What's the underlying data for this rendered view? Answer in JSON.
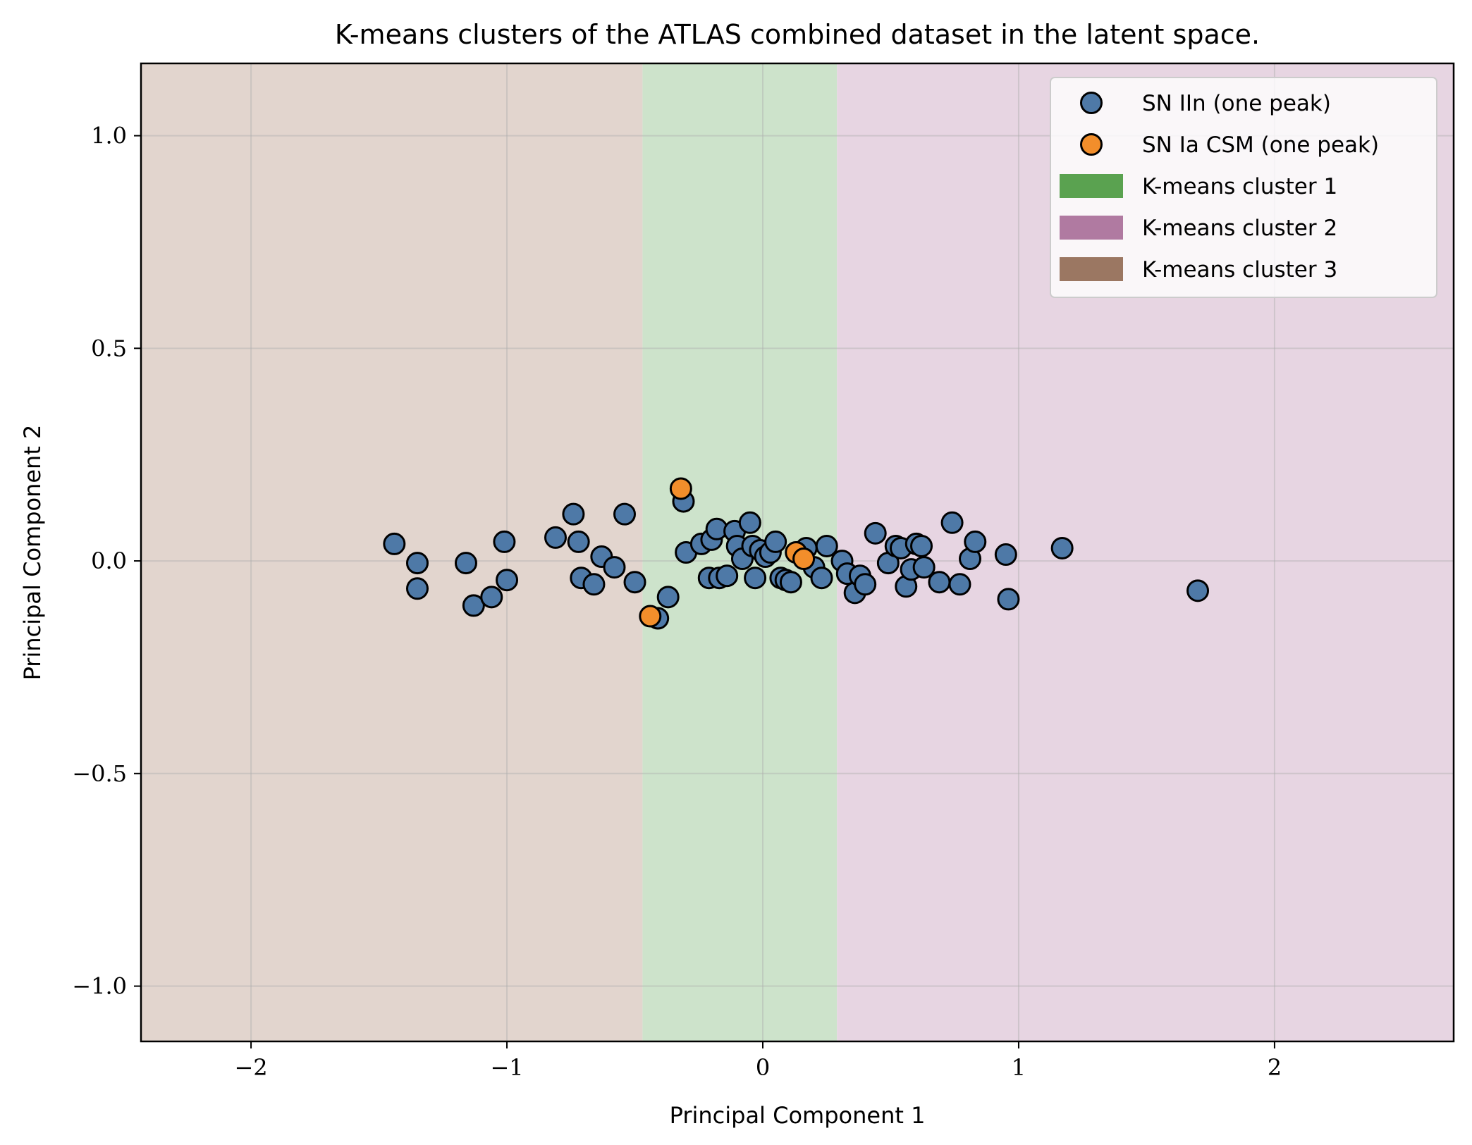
{
  "chart_data": {
    "type": "scatter",
    "title": "K-means clusters of the ATLAS combined dataset in the latent space.",
    "xlabel": "Principal Component 1",
    "ylabel": "Principal Component 2",
    "xlim": [
      -2.43,
      2.7
    ],
    "ylim": [
      -1.13,
      1.17
    ],
    "x_ticks": [
      -2,
      -1,
      0,
      1,
      2
    ],
    "x_tick_labels": [
      "−2",
      "−1",
      "0",
      "1",
      "2"
    ],
    "y_ticks": [
      -1.0,
      -0.5,
      0.0,
      0.5,
      1.0
    ],
    "y_tick_labels": [
      "−1.0",
      "−0.5",
      "0.0",
      "0.5",
      "1.0"
    ],
    "grid": true,
    "legend_position": "top-right",
    "regions": [
      {
        "name": "K-means cluster 3",
        "color": "#9b7762",
        "fill": "#e2d5ce",
        "x_from": -2.43,
        "x_to": -0.47
      },
      {
        "name": "K-means cluster 1",
        "color": "#5aa250",
        "fill": "#cde3cb",
        "x_from": -0.47,
        "x_to": 0.29
      },
      {
        "name": "K-means cluster 2",
        "color": "#b07aa1",
        "fill": "#e7d5e2",
        "x_from": 0.29,
        "x_to": 2.7
      }
    ],
    "series": [
      {
        "name": "SN IIn (one peak)",
        "color": "#4e79a7",
        "points": [
          [
            -1.44,
            0.04
          ],
          [
            -1.35,
            -0.005
          ],
          [
            -1.35,
            -0.065
          ],
          [
            -1.16,
            -0.005
          ],
          [
            -1.13,
            -0.105
          ],
          [
            -1.06,
            -0.085
          ],
          [
            -1.01,
            0.045
          ],
          [
            -1.0,
            -0.045
          ],
          [
            -0.81,
            0.055
          ],
          [
            -0.74,
            0.11
          ],
          [
            -0.72,
            0.045
          ],
          [
            -0.71,
            -0.04
          ],
          [
            -0.66,
            -0.055
          ],
          [
            -0.63,
            0.01
          ],
          [
            -0.58,
            -0.015
          ],
          [
            -0.54,
            0.11
          ],
          [
            -0.5,
            -0.05
          ],
          [
            -0.41,
            -0.135
          ],
          [
            -0.37,
            -0.085
          ],
          [
            -0.31,
            0.14
          ],
          [
            -0.3,
            0.02
          ],
          [
            -0.24,
            0.04
          ],
          [
            -0.21,
            -0.04
          ],
          [
            -0.2,
            0.05
          ],
          [
            -0.18,
            0.075
          ],
          [
            -0.17,
            -0.04
          ],
          [
            -0.14,
            -0.035
          ],
          [
            -0.11,
            0.07
          ],
          [
            -0.1,
            0.035
          ],
          [
            -0.08,
            0.005
          ],
          [
            -0.05,
            0.09
          ],
          [
            -0.04,
            0.035
          ],
          [
            -0.03,
            -0.04
          ],
          [
            -0.01,
            0.025
          ],
          [
            0.01,
            0.01
          ],
          [
            0.03,
            0.02
          ],
          [
            0.05,
            0.045
          ],
          [
            0.07,
            -0.04
          ],
          [
            0.09,
            -0.045
          ],
          [
            0.11,
            -0.05
          ],
          [
            0.14,
            0.02
          ],
          [
            0.17,
            0.03
          ],
          [
            0.2,
            -0.015
          ],
          [
            0.23,
            -0.04
          ],
          [
            0.25,
            0.035
          ],
          [
            0.31,
            0.0
          ],
          [
            0.33,
            -0.03
          ],
          [
            0.36,
            -0.075
          ],
          [
            0.38,
            -0.035
          ],
          [
            0.4,
            -0.055
          ],
          [
            0.44,
            0.065
          ],
          [
            0.49,
            -0.005
          ],
          [
            0.52,
            0.035
          ],
          [
            0.54,
            0.03
          ],
          [
            0.56,
            -0.06
          ],
          [
            0.58,
            -0.02
          ],
          [
            0.6,
            0.04
          ],
          [
            0.62,
            0.035
          ],
          [
            0.63,
            -0.015
          ],
          [
            0.69,
            -0.05
          ],
          [
            0.74,
            0.09
          ],
          [
            0.77,
            -0.055
          ],
          [
            0.81,
            0.005
          ],
          [
            0.83,
            0.045
          ],
          [
            0.95,
            0.015
          ],
          [
            0.96,
            -0.09
          ],
          [
            1.17,
            0.03
          ],
          [
            1.7,
            -0.07
          ]
        ]
      },
      {
        "name": "SN Ia CSM (one peak)",
        "color": "#f28e2b",
        "points": [
          [
            -0.32,
            0.17
          ],
          [
            -0.44,
            -0.13
          ],
          [
            0.13,
            0.02
          ],
          [
            0.16,
            0.005
          ]
        ]
      }
    ]
  }
}
